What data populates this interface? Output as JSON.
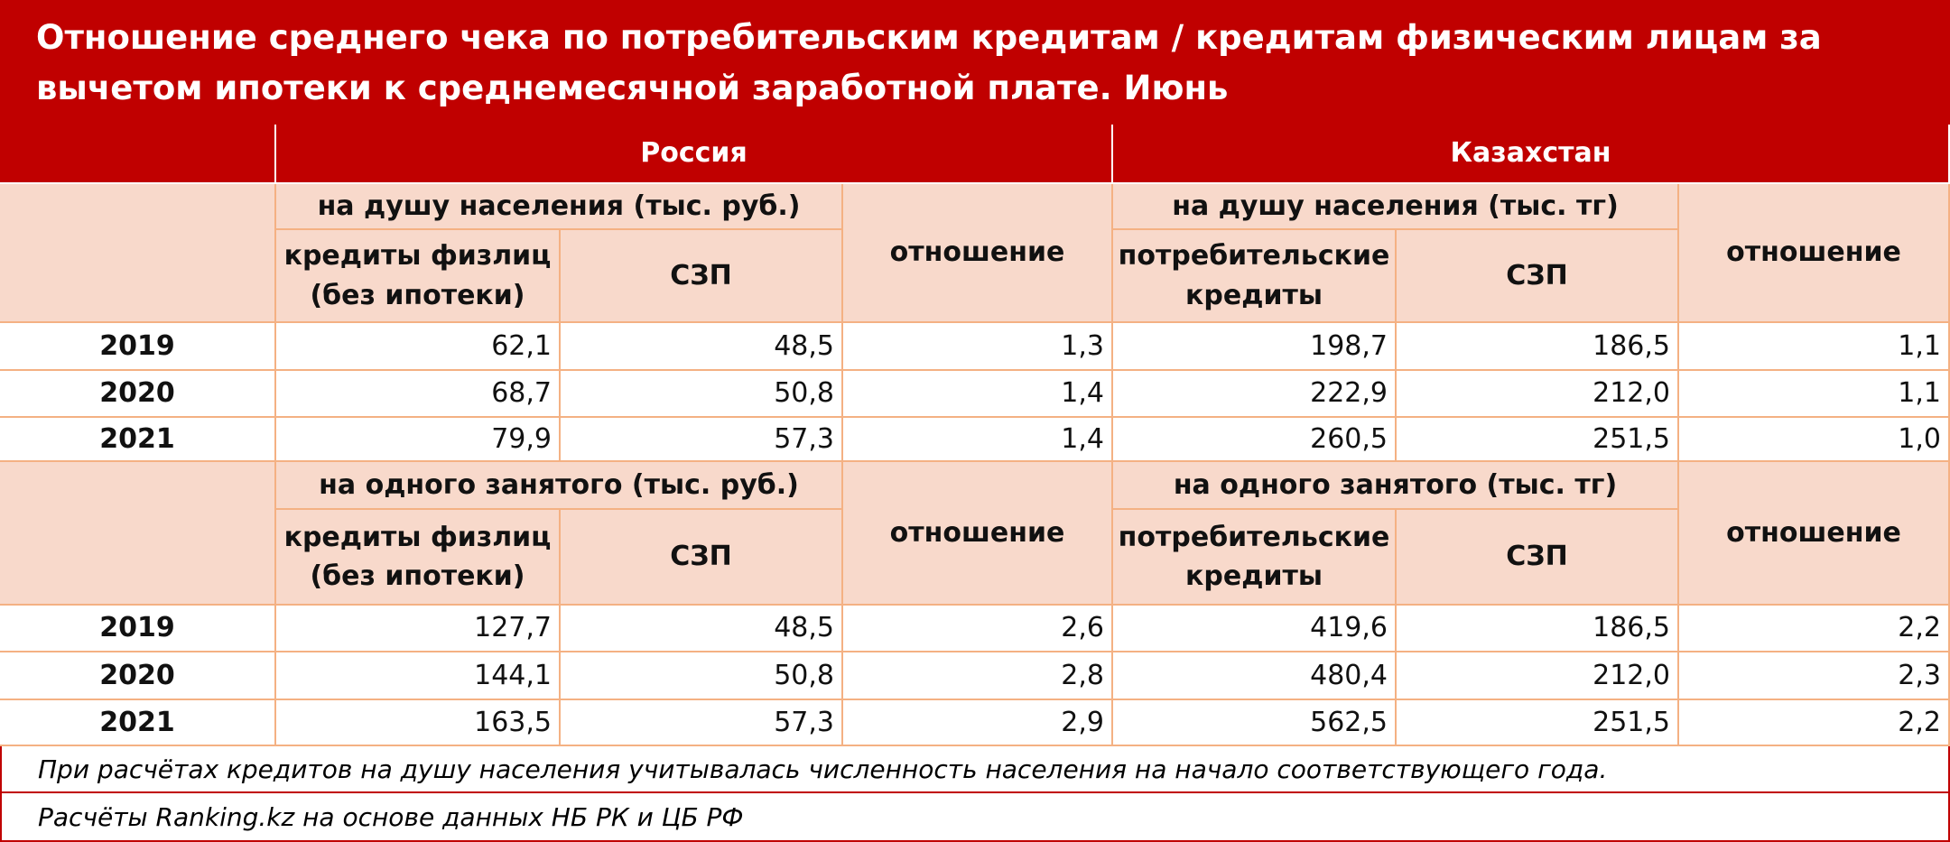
{
  "title": "Отношение среднего чека по потребительским кредитам / кредитам физическим лицам за вычетом ипотеки к среднемесячной заработной плате. Июнь",
  "table": {
    "countries": [
      "Россия",
      "Казахстан"
    ],
    "sections": [
      {
        "russia_group": "на душу населения (тыс. руб.)",
        "kazakhstan_group": "на душу населения (тыс. тг)",
        "russia_columns": [
          "кредиты физлиц (без ипотеки)",
          "СЗП",
          "отношение"
        ],
        "kazakhstan_columns": [
          "потребительские кредиты",
          "СЗП",
          "отношение"
        ],
        "rows": [
          [
            "2019",
            "62,1",
            "48,5",
            "1,3",
            "198,7",
            "186,5",
            "1,1"
          ],
          [
            "2020",
            "68,7",
            "50,8",
            "1,4",
            "222,9",
            "212,0",
            "1,1"
          ],
          [
            "2021",
            "79,9",
            "57,3",
            "1,4",
            "260,5",
            "251,5",
            "1,0"
          ]
        ]
      },
      {
        "russia_group": "на одного занятого (тыс. руб.)",
        "kazakhstan_group": "на одного занятого (тыс. тг)",
        "russia_columns": [
          "кредиты физлиц (без ипотеки)",
          "СЗП",
          "отношение"
        ],
        "kazakhstan_columns": [
          "потребительские кредиты",
          "СЗП",
          "отношение"
        ],
        "rows": [
          [
            "2019",
            "127,7",
            "48,5",
            "2,6",
            "419,6",
            "186,5",
            "2,2"
          ],
          [
            "2020",
            "144,1",
            "50,8",
            "2,8",
            "480,4",
            "212,0",
            "2,3"
          ],
          [
            "2021",
            "163,5",
            "57,3",
            "2,9",
            "562,5",
            "251,5",
            "2,2"
          ]
        ]
      }
    ]
  },
  "note": "При расчётах кредитов на душу населения учитывалась численность населения на начало соответствующего года.",
  "source": "Расчёты Ranking.kz на основе данных НБ РК и ЦБ РФ"
}
